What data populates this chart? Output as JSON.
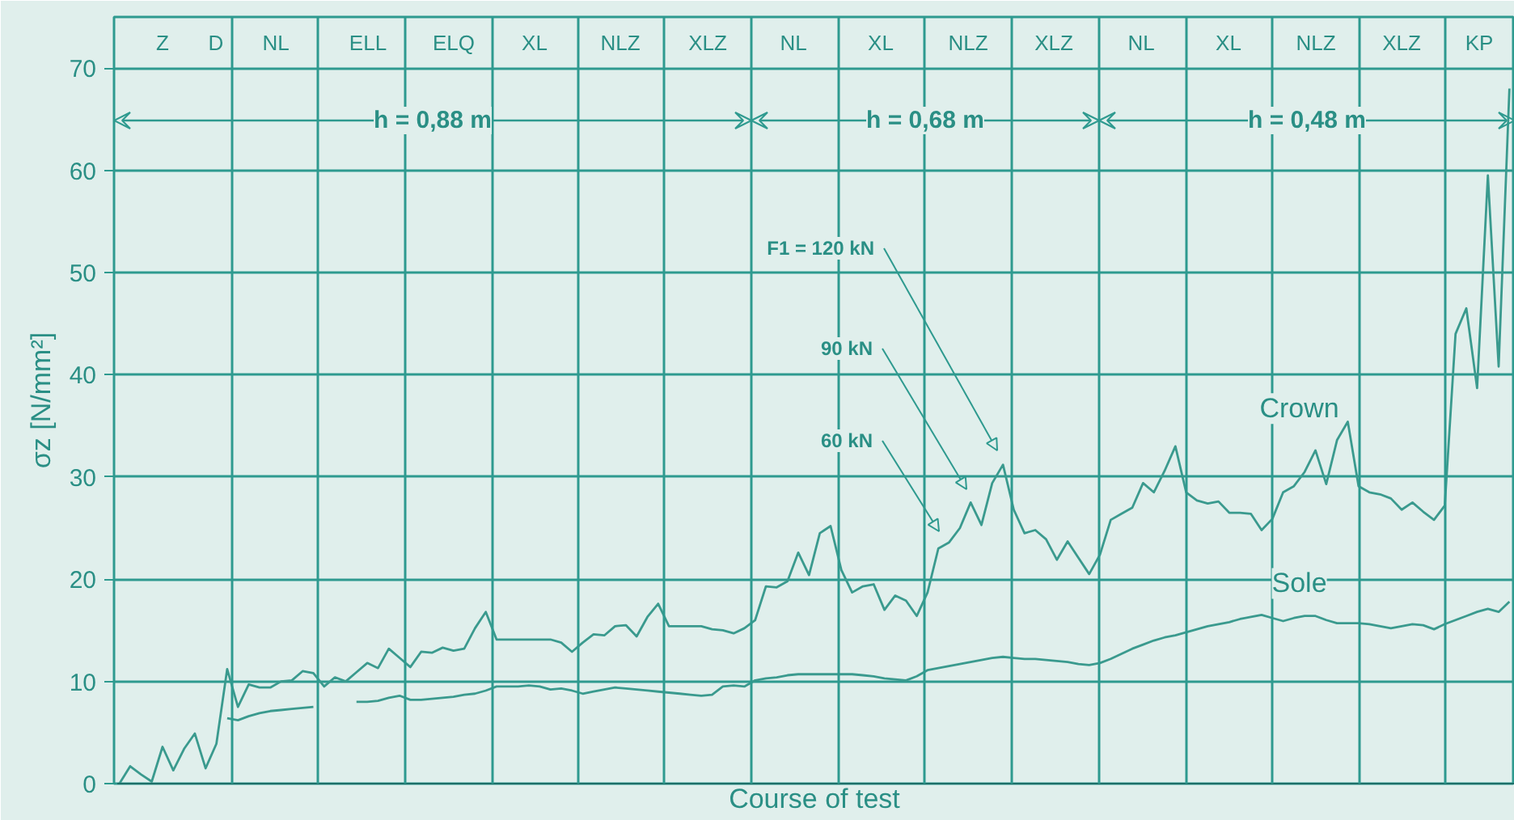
{
  "chart_data": {
    "type": "line",
    "xlabel": "Course of test",
    "ylabel": "σz [N/mm²]",
    "ylim": [
      0,
      75
    ],
    "yticks": [
      0,
      10,
      20,
      30,
      40,
      50,
      60,
      70
    ],
    "tick_labels": "y",
    "grid": true,
    "categories": [
      null,
      null,
      null,
      null,
      null,
      null,
      null,
      null,
      null,
      null,
      null,
      null,
      null,
      null,
      null,
      null,
      null,
      null,
      null,
      null,
      null,
      null,
      null,
      null,
      null,
      null,
      null,
      null,
      null,
      null,
      null,
      null,
      null,
      null,
      null,
      null,
      null,
      null,
      null,
      null,
      null,
      null,
      null,
      null,
      null,
      null,
      null,
      null,
      null,
      null,
      null,
      null,
      null,
      null,
      null,
      null,
      null,
      null,
      null,
      null,
      null,
      null,
      null,
      null,
      null,
      null,
      null,
      null,
      null,
      null,
      null,
      null,
      null,
      null,
      null,
      null,
      null,
      null,
      null,
      null,
      null,
      null,
      null,
      null,
      null,
      null,
      null,
      null,
      null,
      null,
      null,
      null,
      null,
      null,
      null,
      null,
      null,
      null,
      null,
      null,
      null,
      null,
      null,
      null,
      null,
      null,
      null,
      null,
      null,
      null,
      null,
      null,
      null,
      null,
      null,
      null,
      null,
      null,
      null,
      null,
      null,
      null,
      null,
      null,
      null,
      null,
      null,
      null,
      null,
      null
    ],
    "annotations": [
      "Z",
      "D",
      "NL",
      "ELL",
      "ELQ",
      "XL",
      "NLZ",
      "XLZ",
      "NL",
      "XL",
      "NLZ",
      "XLZ",
      "NL",
      "XL",
      "NLZ",
      "XLZ",
      "KP",
      "h = 0,88 m",
      "h = 0,68 m",
      "h = 0,48 m",
      "F1 = 120 kN",
      "90 kN",
      "60 kN"
    ],
    "series": [
      {
        "name": "Crown",
        "color": "#3a9a8e",
        "values": [
          0,
          1.7,
          0.9,
          0.2,
          3.6,
          1.3,
          3.4,
          4.9,
          1.5,
          3.9,
          11.2,
          7.5,
          9.7,
          9.4,
          9.4,
          10,
          10.1,
          11,
          10.8,
          9.5,
          10.4,
          10,
          10.9,
          11.8,
          11.3,
          13.2,
          12.3,
          11.4,
          12.9,
          12.8,
          13.3,
          13,
          13.2,
          15.2,
          16.8,
          14.1,
          14.1,
          14.1,
          14.1,
          14.1,
          14.1,
          13.8,
          12.9,
          13.8,
          14.6,
          14.5,
          15.4,
          15.5,
          14.4,
          16.3,
          17.6,
          15.4,
          15.4,
          15.4,
          15.4,
          15.1,
          15,
          14.7,
          15.2,
          16,
          19.3,
          19.2,
          19.8,
          22.6,
          20.4,
          24.5,
          25.2,
          20.9,
          18.7,
          19.3,
          19.5,
          17,
          18.4,
          17.9,
          16.4,
          18.7,
          23,
          23.6,
          25,
          27.5,
          25.3,
          29.4,
          31.2,
          26.8,
          24.5,
          24.8,
          23.9,
          21.9,
          23.7,
          22.1,
          20.5,
          22.4,
          25.8,
          26.4,
          27,
          29.4,
          28.5,
          30.6,
          33,
          28.5,
          27.7,
          27.4,
          27.6,
          26.5,
          26.5,
          26.4,
          24.8,
          25.9,
          28.5,
          29.1,
          30.5,
          32.6,
          29.3,
          33.6,
          35.4,
          29.1,
          28.5,
          28.3,
          27.9,
          26.8,
          27.5,
          26.6,
          25.8,
          27.2,
          44,
          46.5,
          38.7,
          59.5,
          40.8,
          68
        ]
      },
      {
        "name": "Sole",
        "color": "#3a9a8e",
        "values": [
          null,
          null,
          null,
          null,
          null,
          null,
          null,
          null,
          null,
          null,
          6.4,
          6.2,
          6.6,
          6.9,
          7.1,
          7.2,
          7.3,
          7.4,
          7.5,
          null,
          null,
          null,
          8,
          8,
          8.1,
          8.4,
          8.6,
          8.2,
          8.2,
          8.3,
          8.4,
          8.5,
          8.7,
          8.8,
          9.1,
          9.5,
          9.5,
          9.5,
          9.6,
          9.5,
          9.2,
          9.3,
          9.1,
          8.8,
          9,
          9.2,
          9.4,
          9.3,
          9.2,
          9.1,
          9,
          8.9,
          8.8,
          8.7,
          8.6,
          8.7,
          9.5,
          9.6,
          9.5,
          10.1,
          10.3,
          10.4,
          10.6,
          10.7,
          10.7,
          10.7,
          10.7,
          10.7,
          10.7,
          10.6,
          10.5,
          10.3,
          10.2,
          10.1,
          10.5,
          11.1,
          11.3,
          11.5,
          11.7,
          11.9,
          12.1,
          12.3,
          12.4,
          12.3,
          12.2,
          12.2,
          12.1,
          12,
          11.9,
          11.7,
          11.6,
          11.8,
          12.2,
          12.7,
          13.2,
          13.6,
          14,
          14.3,
          14.5,
          14.8,
          15.1,
          15.4,
          15.6,
          15.8,
          16.1,
          16.3,
          16.5,
          16.2,
          15.9,
          16.2,
          16.4,
          16.4,
          16,
          15.7,
          15.7,
          15.7,
          15.6,
          15.4,
          15.2,
          15.4,
          15.6,
          15.5,
          15.1,
          15.6,
          16,
          16.4,
          16.8,
          17.1,
          16.8,
          17.8
        ]
      }
    ]
  }
}
